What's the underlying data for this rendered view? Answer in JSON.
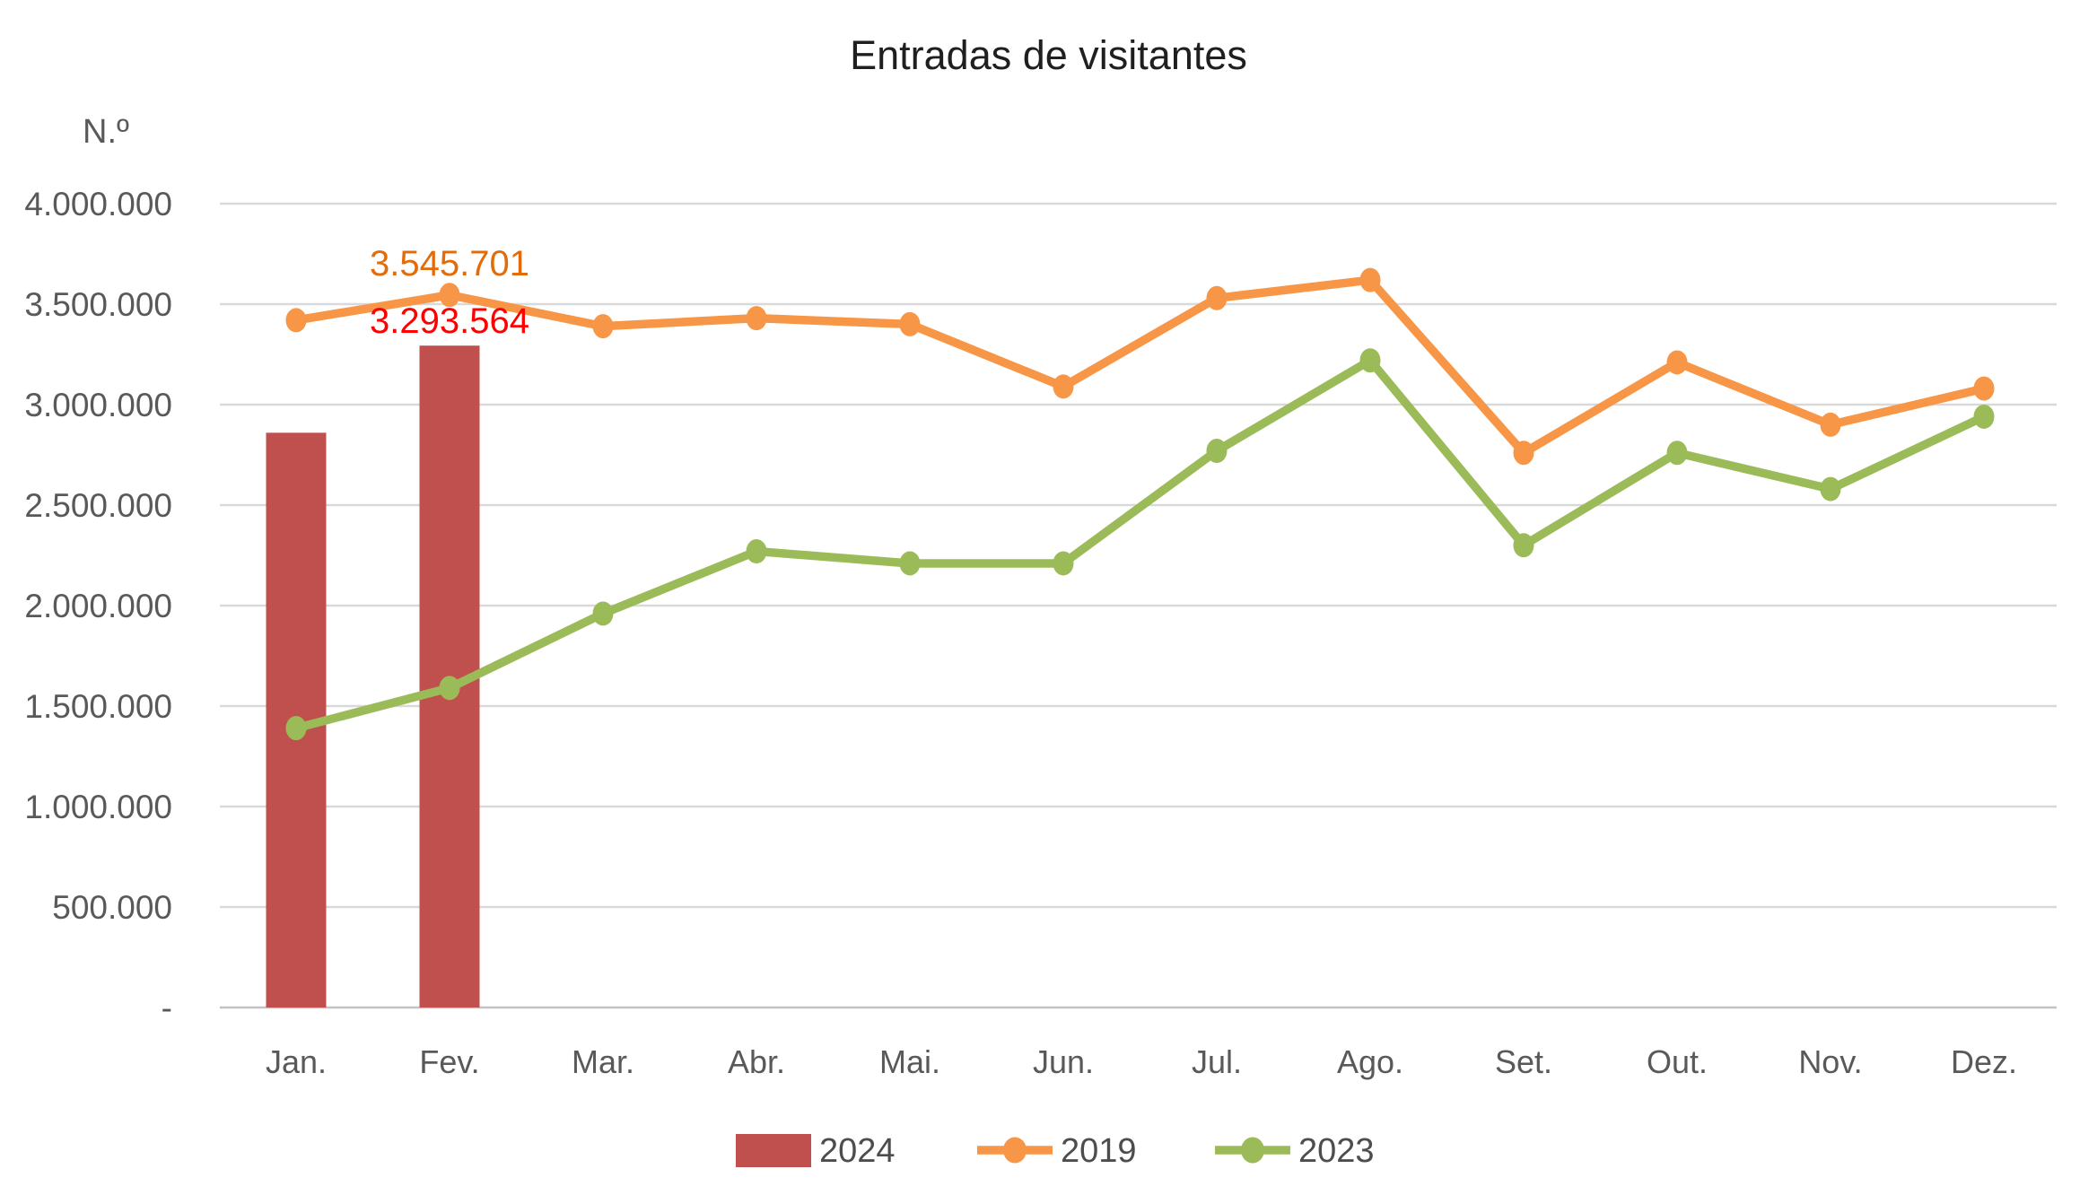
{
  "chart_data": {
    "type": "combo",
    "title": "Entradas de visitantes",
    "ylabel": "N.º",
    "categories": [
      "Jan.",
      "Fev.",
      "Mar.",
      "Abr.",
      "Mai.",
      "Jun.",
      "Jul.",
      "Ago.",
      "Set.",
      "Out.",
      "Nov.",
      "Dez."
    ],
    "series": [
      {
        "name": "2024",
        "type": "bar",
        "color": "#C0504D",
        "values": [
          2860000,
          3293564,
          null,
          null,
          null,
          null,
          null,
          null,
          null,
          null,
          null,
          null
        ]
      },
      {
        "name": "2019",
        "type": "line",
        "color": "#F79646",
        "values": [
          3420000,
          3545701,
          3390000,
          3430000,
          3400000,
          3090000,
          3530000,
          3620000,
          2760000,
          3210000,
          2900000,
          3080000
        ]
      },
      {
        "name": "2023",
        "type": "line",
        "color": "#9BBB59",
        "values": [
          1390000,
          1590000,
          1960000,
          2270000,
          2210000,
          2210000,
          2770000,
          3220000,
          2300000,
          2760000,
          2580000,
          2940000
        ]
      }
    ],
    "annotations": [
      {
        "text": "3.545.701",
        "series": "2019",
        "category": "Fev.",
        "color": "#E36C0A"
      },
      {
        "text": "3.293.564",
        "series": "2024",
        "category": "Fev.",
        "color": "#FF0000"
      }
    ],
    "ylim": [
      0,
      4000000
    ],
    "y_tick_step": 500000,
    "y_tick_labels": [
      "-",
      "500.000",
      "1.000.000",
      "1.500.000",
      "2.000.000",
      "2.500.000",
      "3.000.000",
      "3.500.000",
      "4.000.000"
    ],
    "grid": true,
    "legend_position": "bottom",
    "legend": [
      "2024",
      "2019",
      "2023"
    ]
  },
  "colors": {
    "grid": "#D9D9D9",
    "zero_line": "#C3C3C3",
    "axis_text": "#595959",
    "title_text": "#1f1f1f",
    "legend_text": "#4d4d4d",
    "background": "#FFFFFF"
  }
}
